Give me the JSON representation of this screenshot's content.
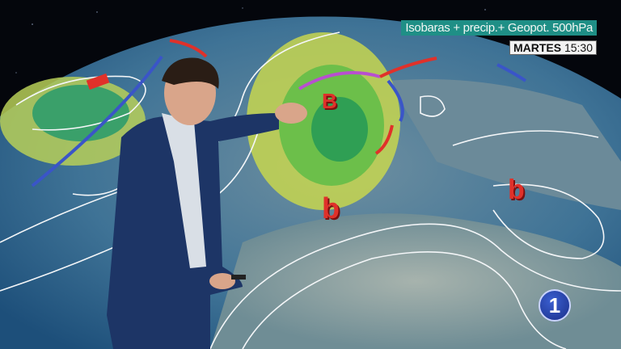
{
  "overlay": {
    "map_caption": "Isobaras + precip.+ Geopot. 500hPa",
    "day": "MARTES",
    "time": "15:30"
  },
  "map": {
    "pressure_labels": [
      "B",
      "b",
      "b"
    ]
  },
  "logo": {
    "channel": "1"
  },
  "colors": {
    "caption_bg": "#1f8f86",
    "low_pressure": "#e0312a",
    "ocean": "#2f6f95",
    "precip_green": "#4caf50"
  }
}
